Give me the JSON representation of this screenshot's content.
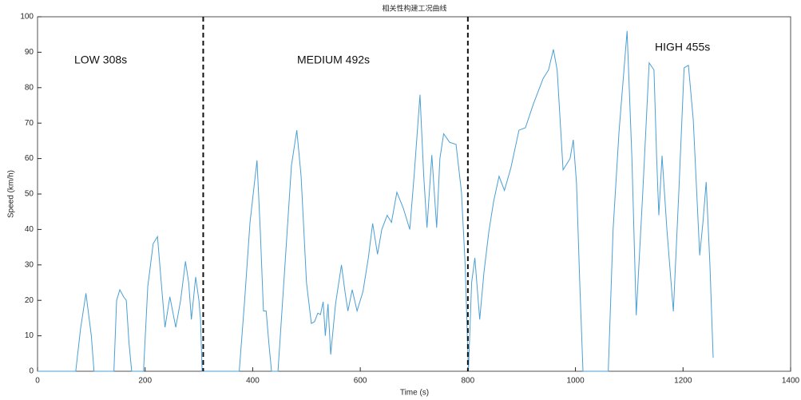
{
  "chart_data": {
    "type": "line",
    "title": "相关性构建工况曲线",
    "x_label": "Time (s)",
    "y_label": "Speed (km/h)",
    "x": [
      0,
      71,
      80,
      90,
      100,
      105,
      142,
      147,
      153,
      160,
      165,
      170,
      175,
      197,
      205,
      215,
      223,
      230,
      237,
      246,
      257,
      266,
      275,
      281,
      286,
      294,
      300,
      303,
      306,
      375,
      385,
      395,
      408,
      414,
      420,
      425,
      430,
      435,
      447,
      460,
      472,
      482,
      490,
      500,
      509,
      515,
      521,
      526,
      531,
      535,
      540,
      545,
      554,
      565,
      572,
      577,
      585,
      594,
      605,
      615,
      623,
      632,
      640,
      650,
      658,
      668,
      680,
      692,
      700,
      711,
      718,
      724,
      733,
      742,
      748,
      755,
      766,
      778,
      788,
      795,
      801,
      807,
      813,
      822,
      830,
      839,
      848,
      858,
      868,
      880,
      895,
      907,
      922,
      940,
      950,
      959,
      966,
      977,
      990,
      996,
      1002,
      1008,
      1014,
      1061,
      1070,
      1081,
      1096,
      1105,
      1113,
      1125,
      1137,
      1146,
      1151,
      1155,
      1161,
      1170,
      1182,
      1192,
      1202,
      1210,
      1219,
      1231,
      1237,
      1243,
      1250,
      1256
    ],
    "series": [
      {
        "color": "#4a9fd4",
        "values": [
          0,
          0,
          12,
          22,
          10,
          0,
          0,
          20,
          23,
          21,
          20,
          8,
          0,
          0,
          24,
          36,
          38,
          25,
          12.4,
          21,
          12.4,
          20,
          31,
          25,
          14.6,
          26.6,
          20,
          14.6,
          0,
          0,
          20,
          42,
          59.5,
          40,
          17,
          17,
          8,
          0,
          0,
          30,
          58,
          68,
          55,
          25,
          13.5,
          14,
          16.4,
          16,
          19.6,
          10,
          19,
          4.7,
          19,
          30,
          22,
          17,
          23,
          17,
          22.5,
          32,
          41.7,
          33,
          40,
          44,
          42,
          50.5,
          46,
          40,
          55,
          78,
          55,
          40.5,
          61,
          40.5,
          60,
          67,
          64.6,
          64,
          50.7,
          30,
          0,
          25,
          32,
          14.6,
          28,
          39.4,
          48,
          55,
          51,
          57.4,
          68,
          68.7,
          75.5,
          82.6,
          85,
          90.8,
          85,
          56.8,
          60,
          65.3,
          53,
          25,
          0,
          0,
          40,
          67.6,
          96,
          60,
          15.8,
          50,
          87,
          85,
          60,
          44,
          60.8,
          40,
          16.9,
          50,
          85.6,
          86.3,
          71,
          32.7,
          42,
          53.4,
          30,
          3.8
        ]
      }
    ],
    "dividers": [
      308,
      800
    ],
    "annotations": [
      "LOW 308s",
      "MEDIUM 492s",
      "HIGH 455s"
    ],
    "xlim": [
      0,
      1400
    ],
    "xticks": [
      0,
      200,
      400,
      600,
      800,
      1000,
      1200,
      1400
    ],
    "ylim": [
      0,
      100
    ],
    "yticks": [
      0,
      10,
      20,
      30,
      40,
      50,
      60,
      70,
      80,
      90,
      100
    ]
  }
}
